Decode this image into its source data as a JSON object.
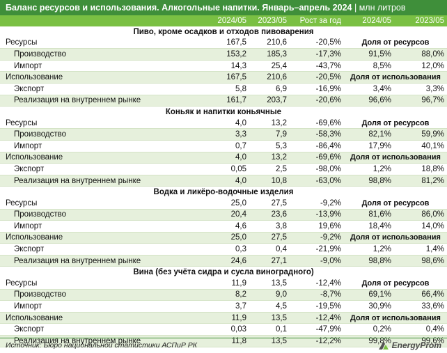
{
  "title": {
    "main": "Баланс ресурсов и использования. Алкогольные напитки. Январь–апрель 2024",
    "unit": "| млн литров"
  },
  "headers": [
    "",
    "2024/05",
    "2023/05",
    "Рост за год",
    "2024/05",
    "2023/05"
  ],
  "labels": {
    "resources": "Ресурсы",
    "production": "Производство",
    "import": "Импорт",
    "usage": "Использование",
    "export": "Экспорт",
    "domestic": "Реализация на внутреннем рынке",
    "share_resources": "Доля от ресурсов",
    "share_usage": "Доля от использования"
  },
  "sections": [
    {
      "title": "Пиво, кроме осадков и отходов пивоварения",
      "resources": [
        "167,5",
        "210,6",
        "-20,5%"
      ],
      "production": [
        "153,2",
        "185,3",
        "-17,3%",
        "91,5%",
        "88,0%"
      ],
      "import": [
        "14,3",
        "25,4",
        "-43,7%",
        "8,5%",
        "12,0%"
      ],
      "usage": [
        "167,5",
        "210,6",
        "-20,5%"
      ],
      "export": [
        "5,8",
        "6,9",
        "-16,9%",
        "3,4%",
        "3,3%"
      ],
      "domestic": [
        "161,7",
        "203,7",
        "-20,6%",
        "96,6%",
        "96,7%"
      ]
    },
    {
      "title": "Коньяк и напитки коньячные",
      "resources": [
        "4,0",
        "13,2",
        "-69,6%"
      ],
      "production": [
        "3,3",
        "7,9",
        "-58,3%",
        "82,1%",
        "59,9%"
      ],
      "import": [
        "0,7",
        "5,3",
        "-86,4%",
        "17,9%",
        "40,1%"
      ],
      "usage": [
        "4,0",
        "13,2",
        "-69,6%"
      ],
      "export": [
        "0,05",
        "2,5",
        "-98,0%",
        "1,2%",
        "18,8%"
      ],
      "domestic": [
        "4,0",
        "10,8",
        "-63,0%",
        "98,8%",
        "81,2%"
      ]
    },
    {
      "title": "Водка и ликёро-водочные изделия",
      "resources": [
        "25,0",
        "27,5",
        "-9,2%"
      ],
      "production": [
        "20,4",
        "23,6",
        "-13,9%",
        "81,6%",
        "86,0%"
      ],
      "import": [
        "4,6",
        "3,8",
        "19,6%",
        "18,4%",
        "14,0%"
      ],
      "usage": [
        "25,0",
        "27,5",
        "-9,2%"
      ],
      "export": [
        "0,3",
        "0,4",
        "-21,9%",
        "1,2%",
        "1,4%"
      ],
      "domestic": [
        "24,6",
        "27,1",
        "-9,0%",
        "98,8%",
        "98,6%"
      ]
    },
    {
      "title": "Вина (без учёта сидра и сусла виноградного)",
      "resources": [
        "11,9",
        "13,5",
        "-12,4%"
      ],
      "production": [
        "8,2",
        "9,0",
        "-8,7%",
        "69,1%",
        "66,4%"
      ],
      "import": [
        "3,7",
        "4,5",
        "-19,5%",
        "30,9%",
        "33,6%"
      ],
      "usage": [
        "11,9",
        "13,5",
        "-12,4%"
      ],
      "export": [
        "0,03",
        "0,1",
        "-47,9%",
        "0,2%",
        "0,4%"
      ],
      "domestic": [
        "11,8",
        "13,5",
        "-12,2%",
        "99,8%",
        "99,6%"
      ]
    }
  ],
  "footer": {
    "source": "Источник: Бюро национальной статистики АСПиР РК",
    "logo": "EnergyProm"
  },
  "colors": {
    "title_bg": "#3f8f3a",
    "header_bg": "#7ac043",
    "row_shade": "#e6f0dc"
  }
}
